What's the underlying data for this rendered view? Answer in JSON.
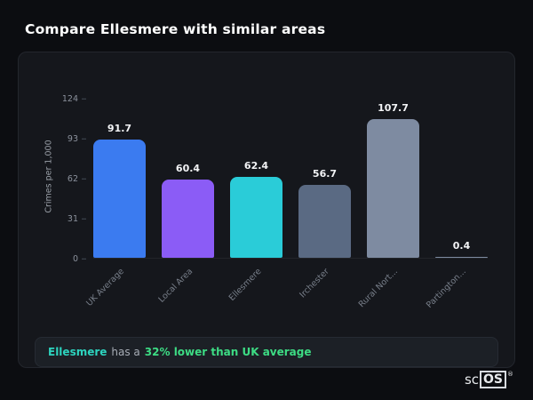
{
  "header": {
    "title": "Compare Ellesmere with similar areas"
  },
  "chart_data": {
    "type": "bar",
    "title": "",
    "xlabel": "",
    "ylabel": "Crimes per 1,000",
    "categories": [
      "UK Average",
      "Local Area",
      "Ellesmere",
      "Irchester",
      "Rural Nort...",
      "Partington..."
    ],
    "values": [
      91.7,
      60.4,
      62.4,
      56.7,
      107.7,
      0.4
    ],
    "bar_colors": [
      "#3b7bf0",
      "#8b5cf6",
      "#2accd8",
      "#5a6a83",
      "#7e8ba1",
      "#7e8ba1"
    ],
    "yticks": [
      0,
      31,
      62,
      93,
      124
    ],
    "ylim": [
      0,
      124
    ],
    "grid": false,
    "legend": false
  },
  "footer": {
    "name": "Ellesmere",
    "mid": "has a",
    "stat": "32% lower than UK average"
  },
  "logo": {
    "prefix": "sc",
    "boxed": "OS",
    "registered": "®"
  },
  "colors": {
    "bg": "#0c0d11",
    "card": "#15171c",
    "accent-teal": "#2dd4bf",
    "stat-green": "#3ddc84"
  }
}
